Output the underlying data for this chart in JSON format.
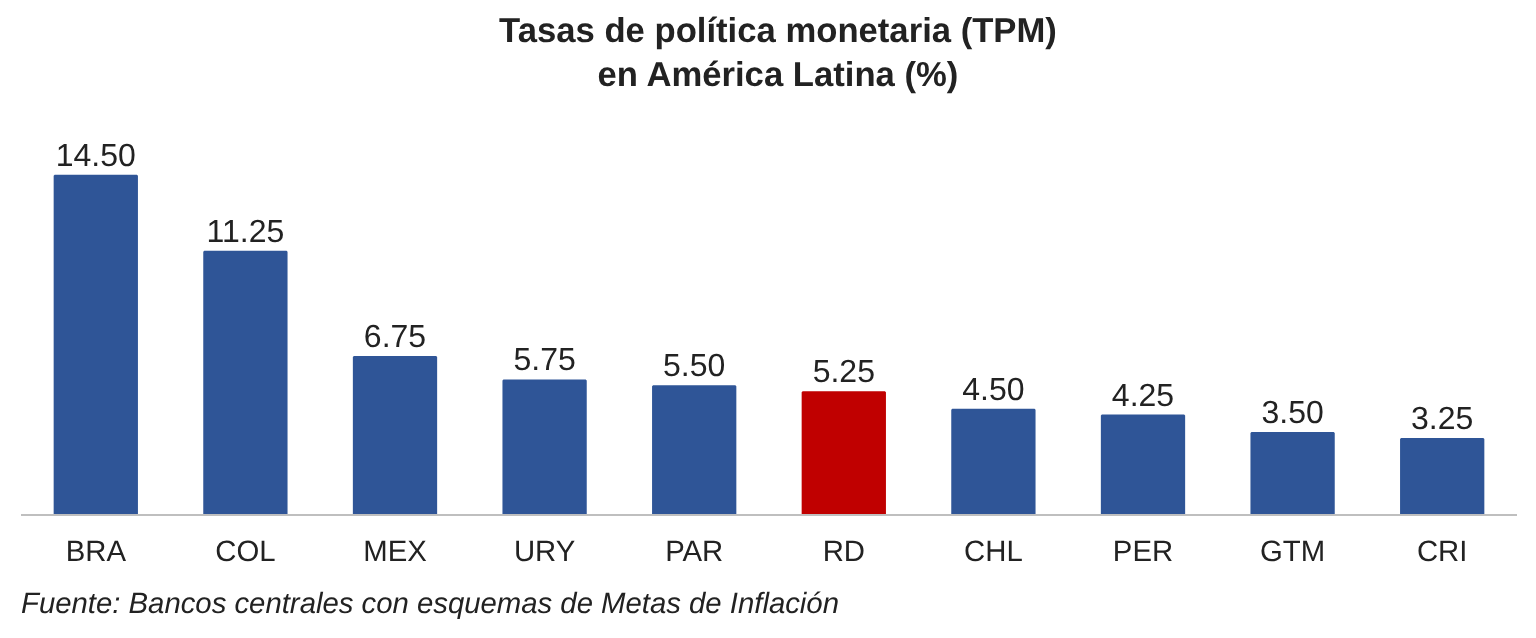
{
  "chart_data": {
    "type": "bar",
    "title": "Tasas de política monetaria (TPM)\nen América Latina (%)",
    "categories": [
      "BRA",
      "COL",
      "MEX",
      "URY",
      "PAR",
      "RD",
      "CHL",
      "PER",
      "GTM",
      "CRI"
    ],
    "values": [
      14.5,
      11.25,
      6.75,
      5.75,
      5.5,
      5.25,
      4.5,
      4.25,
      3.5,
      3.25
    ],
    "colors": [
      "#2f5597",
      "#2f5597",
      "#2f5597",
      "#2f5597",
      "#2f5597",
      "#c00000",
      "#2f5597",
      "#2f5597",
      "#2f5597",
      "#2f5597"
    ],
    "value_labels": [
      "14.50",
      "11.25",
      "6.75",
      "5.75",
      "5.50",
      "5.25",
      "4.50",
      "4.25",
      "3.50",
      "3.25"
    ],
    "grid": false,
    "annotations": [
      "Fuente: Bancos centrales con esquemas de Metas de Inflación"
    ]
  }
}
